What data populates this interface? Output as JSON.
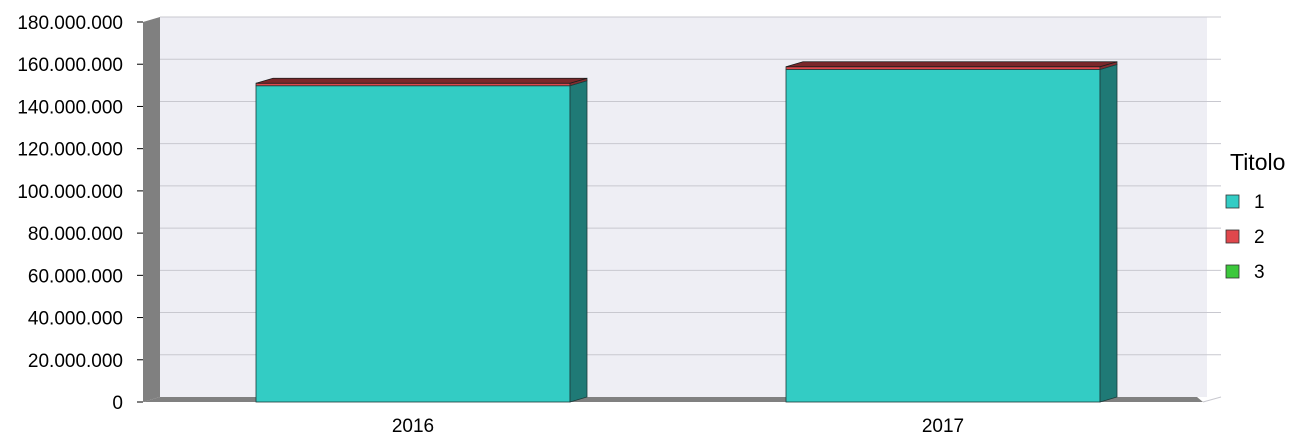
{
  "chart_data": {
    "type": "bar",
    "stacked": true,
    "style": "3d",
    "categories": [
      "2016",
      "2017"
    ],
    "series": [
      {
        "name": "1",
        "color": "#33CCC4",
        "values": [
          149800000,
          157500000
        ]
      },
      {
        "name": "2",
        "color": "#E0474C",
        "values": [
          1200000,
          1300000
        ]
      },
      {
        "name": "3",
        "color": "#3CC83C",
        "values": [
          0,
          0
        ]
      }
    ],
    "ylim": [
      0,
      180000000
    ],
    "yticks": [
      "0",
      "20.000.000",
      "40.000.000",
      "60.000.000",
      "80.000.000",
      "100.000.000",
      "120.000.000",
      "140.000.000",
      "160.000.000",
      "180.000.000"
    ],
    "legend": {
      "title": "Titolo",
      "position": "right"
    },
    "grid": true,
    "colors": {
      "plot_bg": "#EEEEF4",
      "gridline": "#C8C8CF",
      "wall_side": "#808080",
      "floor": "#808080"
    }
  }
}
